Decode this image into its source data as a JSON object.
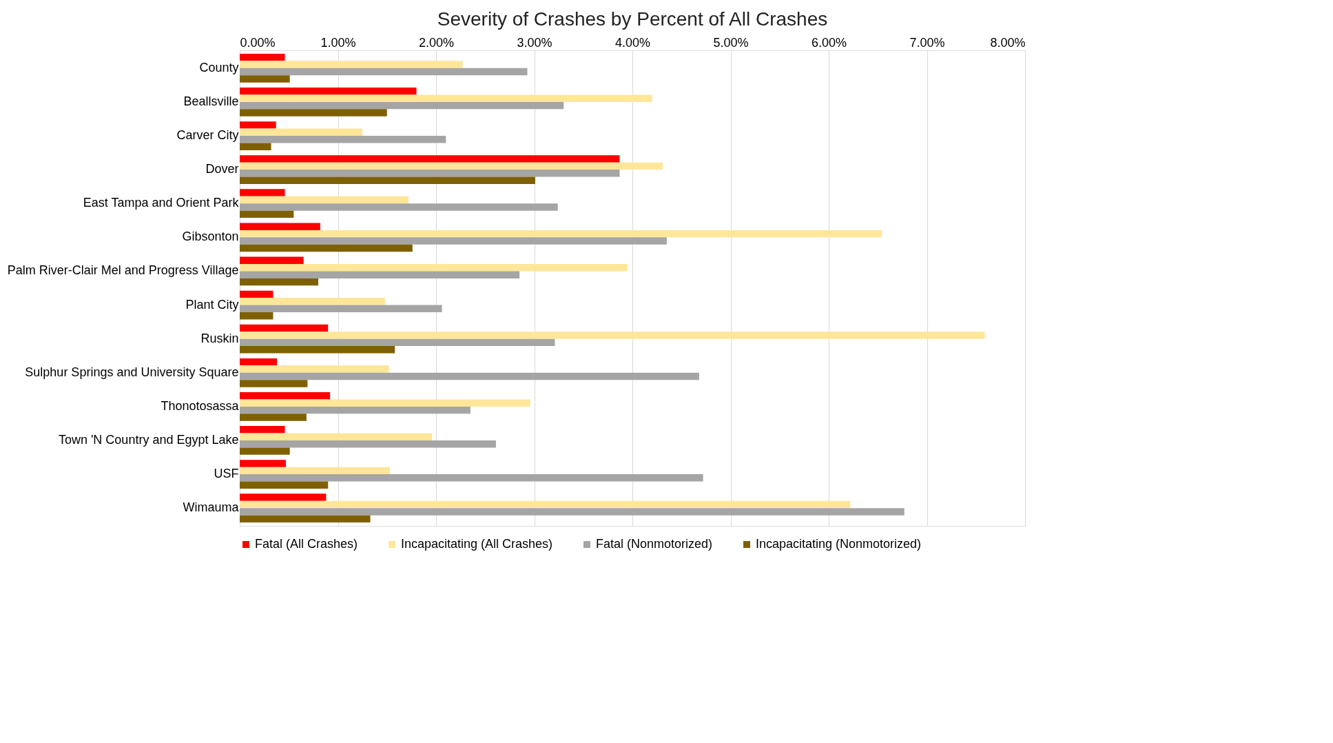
{
  "chart_data": {
    "type": "bar",
    "orientation": "horizontal",
    "title": "Severity of Crashes by Percent of All Crashes",
    "categories": [
      "County",
      "Beallsville",
      "Carver City",
      "Dover",
      "East Tampa and Orient Park",
      "Gibsonton",
      "Palm River-Clair Mel and Progress Village",
      "Plant City",
      "Ruskin",
      "Sulphur Springs and University Square",
      "Thonotosassa",
      "Town 'N Country and Egypt Lake",
      "USF",
      "Wimauma"
    ],
    "series": [
      {
        "name": "Fatal (All Crashes)",
        "color": "#ff0000",
        "values": [
          0.46,
          1.8,
          0.37,
          3.87,
          0.46,
          0.82,
          0.65,
          0.34,
          0.9,
          0.38,
          0.92,
          0.46,
          0.47,
          0.88
        ]
      },
      {
        "name": "Incapacitating (All Crashes)",
        "color": "#ffe699",
        "values": [
          2.27,
          4.2,
          1.25,
          4.31,
          1.72,
          6.54,
          3.95,
          1.48,
          7.59,
          1.52,
          2.96,
          1.96,
          1.53,
          6.22
        ]
      },
      {
        "name": "Fatal (Nonmotorized)",
        "color": "#a5a5a5",
        "values": [
          2.93,
          3.3,
          2.1,
          3.87,
          3.24,
          4.35,
          2.85,
          2.06,
          3.21,
          4.68,
          2.35,
          2.61,
          4.72,
          6.77
        ]
      },
      {
        "name": "Incapacitating (Nonmotorized)",
        "color": "#7f6000",
        "values": [
          0.51,
          1.5,
          0.32,
          3.01,
          0.55,
          1.76,
          0.8,
          0.34,
          1.58,
          0.69,
          0.68,
          0.51,
          0.9,
          1.33
        ]
      }
    ],
    "xlim": [
      0,
      8
    ],
    "xticks": [
      {
        "value": 0,
        "label": "0.00%"
      },
      {
        "value": 1,
        "label": "1.00%"
      },
      {
        "value": 2,
        "label": "2.00%"
      },
      {
        "value": 3,
        "label": "3.00%"
      },
      {
        "value": 4,
        "label": "4.00%"
      },
      {
        "value": 5,
        "label": "5.00%"
      },
      {
        "value": 6,
        "label": "6.00%"
      },
      {
        "value": 7,
        "label": "7.00%"
      },
      {
        "value": 8,
        "label": "8.00%"
      }
    ],
    "grid": "x",
    "legend": "bottom"
  }
}
